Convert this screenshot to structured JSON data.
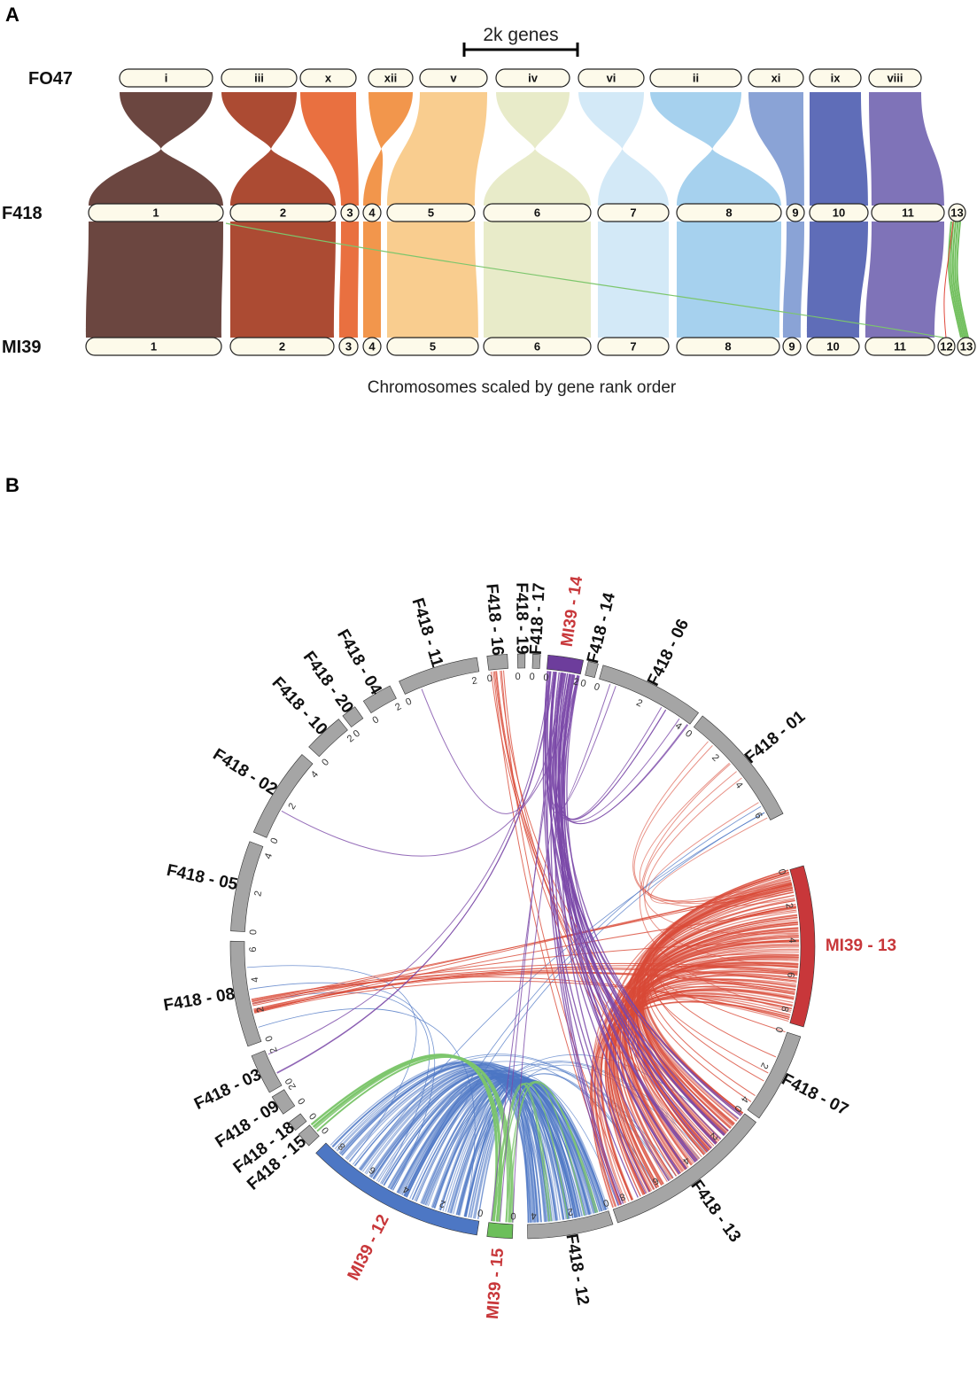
{
  "panel_a": {
    "letter": "A",
    "scale_label": "2k genes",
    "axis_caption": "Chromosomes scaled by gene rank order",
    "genomes": [
      "FO47",
      "F418",
      "MI39"
    ],
    "fo47_chromosomes": [
      "i",
      "iii",
      "x",
      "xii",
      "v",
      "iv",
      "vi",
      "ii",
      "xi",
      "ix",
      "viii"
    ],
    "f418_chromosomes": [
      "1",
      "2",
      "3",
      "4",
      "5",
      "6",
      "7",
      "8",
      "9",
      "10",
      "11",
      "13"
    ],
    "mi39_chromosomes": [
      "1",
      "2",
      "3",
      "4",
      "5",
      "6",
      "7",
      "8",
      "9",
      "10",
      "11",
      "12",
      "13"
    ],
    "colors": [
      "#6b4640",
      "#ac4b33",
      "#e97040",
      "#f2964c",
      "#f9cd8f",
      "#e8ebc9",
      "#d3e9f7",
      "#a6d1ee",
      "#8aa3d6",
      "#5f6db8",
      "#7f73b8"
    ]
  },
  "panel_b": {
    "letter": "B",
    "segments": [
      {
        "name": "MI39 - 13",
        "accessory": true,
        "color": "#c8373a",
        "ticks": [
          "0",
          "2",
          "4",
          "6",
          "8"
        ]
      },
      {
        "name": "F418 - 07",
        "accessory": false,
        "color": "#a5a5a5",
        "ticks": [
          "0",
          "2",
          "4"
        ]
      },
      {
        "name": "F418 - 13",
        "accessory": false,
        "color": "#a5a5a5",
        "ticks": [
          "0",
          "2",
          "4",
          "6",
          "8"
        ]
      },
      {
        "name": "F418 - 12",
        "accessory": false,
        "color": "#a5a5a5",
        "ticks": [
          "0",
          "2",
          "4"
        ]
      },
      {
        "name": "MI39 - 15",
        "accessory": true,
        "color": "#6cbf5a",
        "ticks": [
          "0"
        ]
      },
      {
        "name": "MI39 - 12",
        "accessory": true,
        "color": "#4d77c4",
        "ticks": [
          "0",
          "2",
          "4",
          "6",
          "8"
        ]
      },
      {
        "name": "F418 - 15",
        "accessory": false,
        "color": "#a5a5a5",
        "ticks": [
          "0"
        ]
      },
      {
        "name": "F418 - 18",
        "accessory": false,
        "color": "#a5a5a5",
        "ticks": [
          "0"
        ]
      },
      {
        "name": "F418 - 09",
        "accessory": false,
        "color": "#a5a5a5",
        "ticks": [
          "0",
          "2"
        ]
      },
      {
        "name": "F418 - 03",
        "accessory": false,
        "color": "#a5a5a5",
        "ticks": [
          "0",
          "2"
        ]
      },
      {
        "name": "F418 - 08",
        "accessory": false,
        "color": "#a5a5a5",
        "ticks": [
          "0",
          "2",
          "4",
          "6"
        ]
      },
      {
        "name": "F418 - 05",
        "accessory": false,
        "color": "#a5a5a5",
        "ticks": [
          "0",
          "2",
          "4"
        ]
      },
      {
        "name": "F418 - 02",
        "accessory": false,
        "color": "#a5a5a5",
        "ticks": [
          "0",
          "2",
          "4"
        ]
      },
      {
        "name": "F418 - 10",
        "accessory": false,
        "color": "#a5a5a5",
        "ticks": [
          "0",
          "2"
        ]
      },
      {
        "name": "F418 - 20",
        "accessory": false,
        "color": "#a5a5a5",
        "ticks": [
          "0"
        ]
      },
      {
        "name": "F418 - 04",
        "accessory": false,
        "color": "#a5a5a5",
        "ticks": [
          "0",
          "2"
        ]
      },
      {
        "name": "F418 - 11",
        "accessory": false,
        "color": "#a5a5a5",
        "ticks": [
          "0",
          "2"
        ]
      },
      {
        "name": "F418 - 16",
        "accessory": false,
        "color": "#a5a5a5",
        "ticks": [
          "0"
        ]
      },
      {
        "name": "F418 - 19",
        "accessory": false,
        "color": "#a5a5a5",
        "ticks": [
          "0"
        ]
      },
      {
        "name": "F418 - 17",
        "accessory": false,
        "color": "#a5a5a5",
        "ticks": [
          "0"
        ]
      },
      {
        "name": "MI39 - 14",
        "accessory": true,
        "color": "#6d3d9c",
        "ticks": [
          "0",
          "2"
        ]
      },
      {
        "name": "F418 - 14",
        "accessory": false,
        "color": "#a5a5a5",
        "ticks": [
          "0"
        ]
      },
      {
        "name": "F418 - 06",
        "accessory": false,
        "color": "#a5a5a5",
        "ticks": [
          "0",
          "2",
          "4"
        ]
      },
      {
        "name": "F418 - 01",
        "accessory": false,
        "color": "#a5a5a5",
        "ticks": [
          "0",
          "2",
          "4",
          "6"
        ]
      }
    ],
    "link_colors": {
      "red": "#d94a37",
      "blue": "#4d77c4",
      "green": "#7cc66c",
      "purple": "#7a48a8"
    }
  }
}
